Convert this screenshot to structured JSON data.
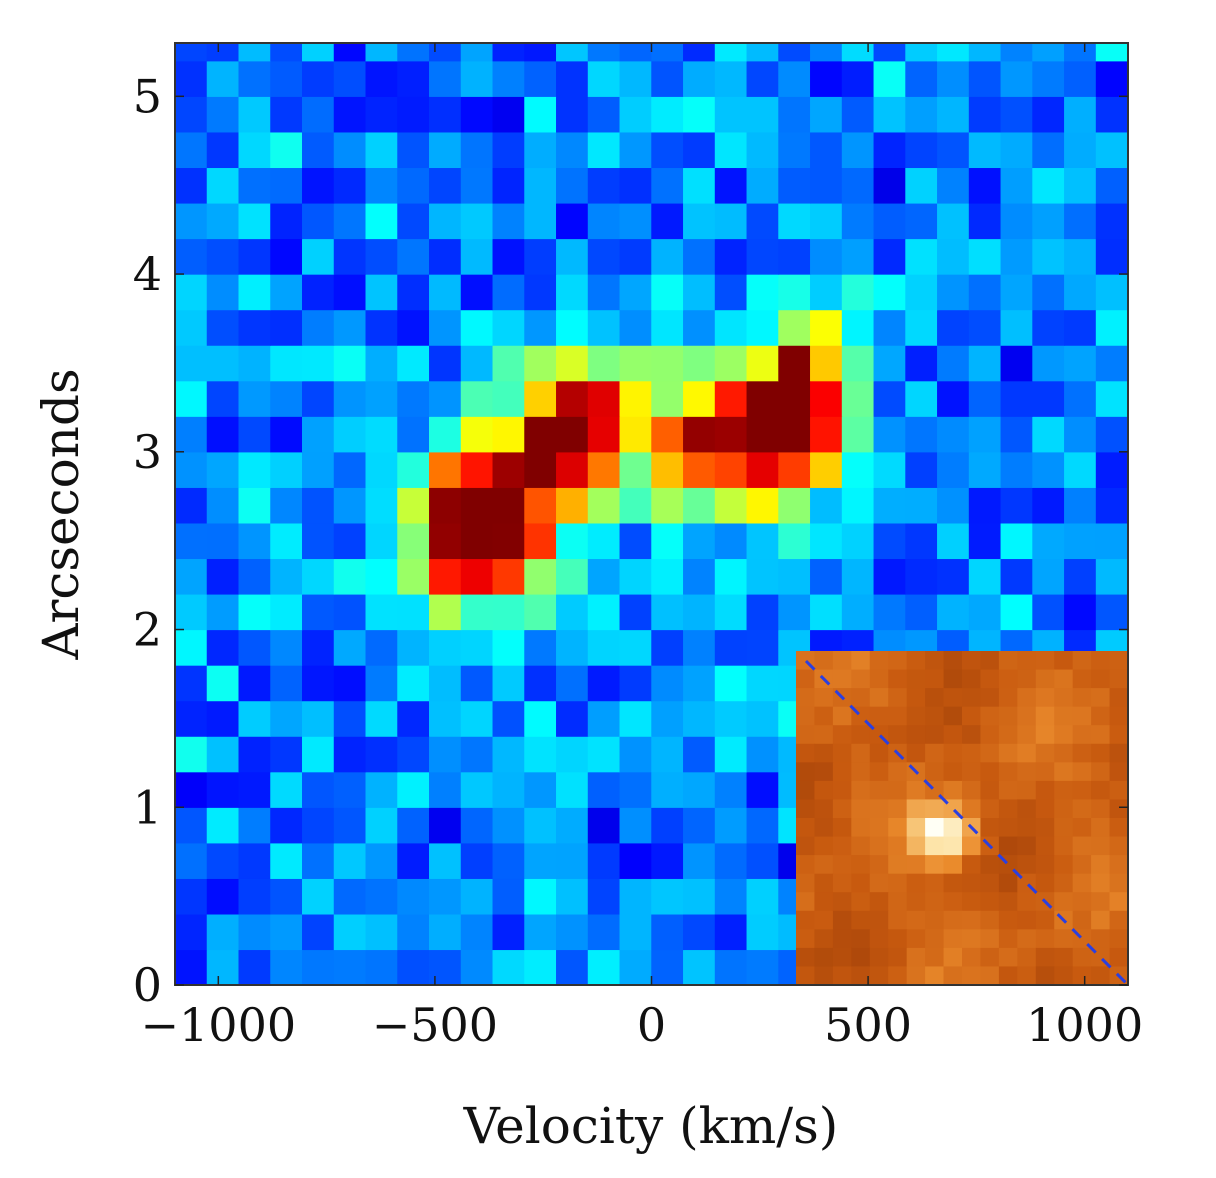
{
  "chart_data": {
    "type": "heatmap",
    "title": "",
    "xlabel": "Velocity (km/s)",
    "ylabel": "Arcseconds",
    "xlim": [
      -1100,
      1100
    ],
    "ylim": [
      0,
      5.3
    ],
    "xticks": [
      -1000,
      -500,
      0,
      500,
      1000
    ],
    "yticks": [
      0,
      1,
      2,
      3,
      4,
      5
    ],
    "xtick_labels": [
      "−1000",
      "−500",
      "0",
      "500",
      "1000"
    ],
    "ytick_labels": [
      "0",
      "1",
      "2",
      "3",
      "4",
      "5"
    ],
    "grid": false,
    "colormap": "jet",
    "cell_width_kms": 73.3,
    "cell_height_arcsec": 0.2,
    "emission_blobs": [
      {
        "velocity_kms": -400,
        "arcsec": 2.6,
        "peak": 1.0,
        "sigma_v": 110,
        "sigma_a": 0.32
      },
      {
        "velocity_kms": -180,
        "arcsec": 3.1,
        "peak": 0.85,
        "sigma_v": 90,
        "sigma_a": 0.3
      },
      {
        "velocity_kms": 150,
        "arcsec": 3.05,
        "peak": 0.68,
        "sigma_v": 110,
        "sigma_a": 0.3
      },
      {
        "velocity_kms": 340,
        "arcsec": 3.25,
        "peak": 0.85,
        "sigma_v": 75,
        "sigma_a": 0.35
      }
    ],
    "background_level": 0.25,
    "inset": {
      "type": "image",
      "colormap": "orange",
      "position": "bottom-right",
      "source_center": [
        0.45,
        0.55
      ],
      "slit_line": "dashed diagonal",
      "slit_color": "#2b3fe0"
    }
  }
}
